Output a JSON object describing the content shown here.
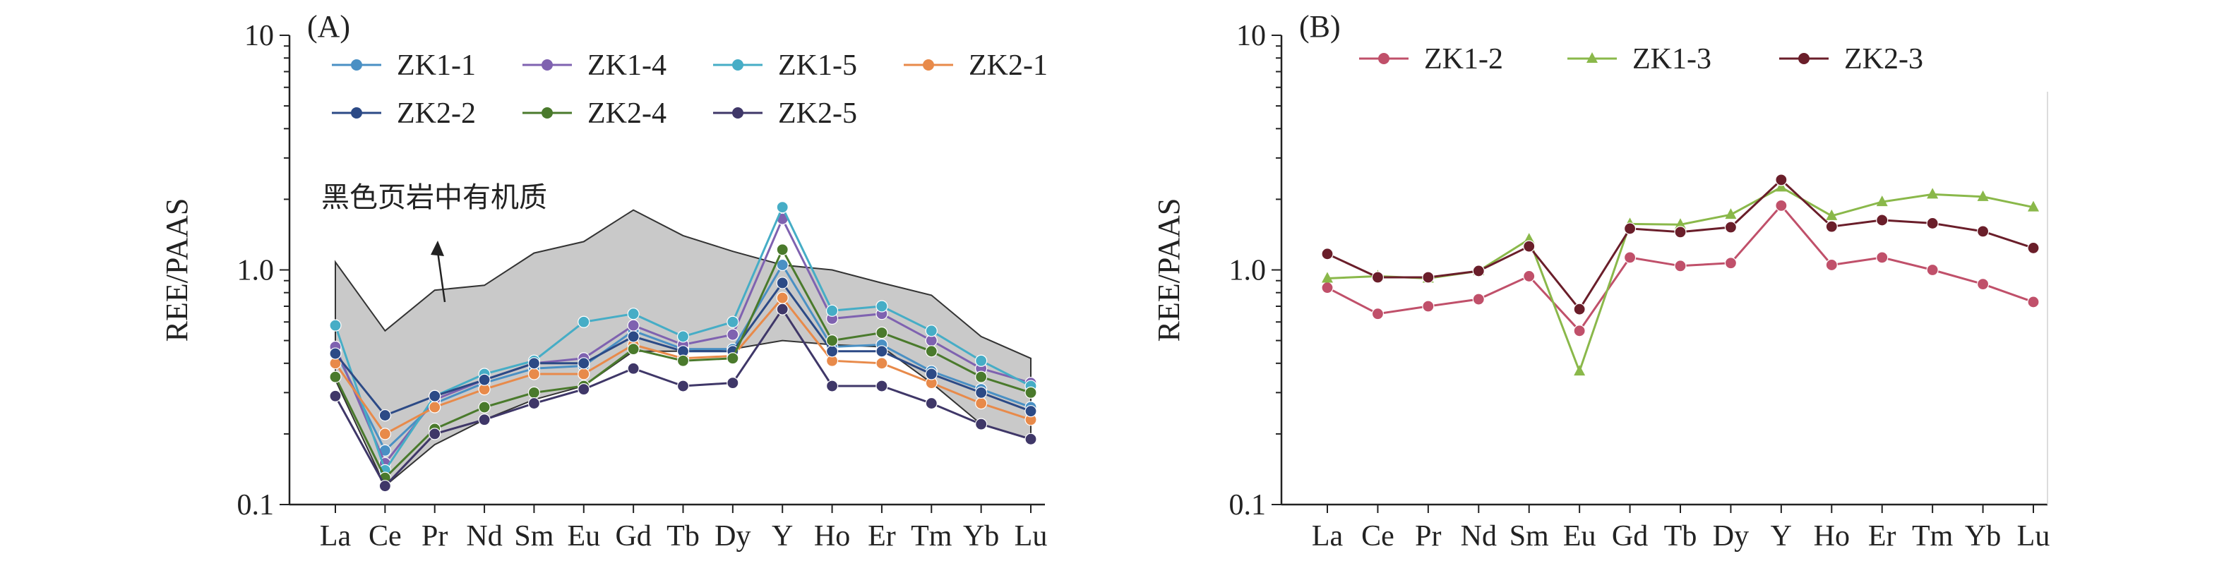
{
  "chart_data": [
    {
      "panel_label": "(A)",
      "type": "line",
      "ylabel": "REE/PAAS",
      "yscale": "log",
      "ylim": [
        0.1,
        10
      ],
      "yticks": [
        "0.1",
        "1.0",
        "10"
      ],
      "categories": [
        "La",
        "Ce",
        "Pr",
        "Nd",
        "Sm",
        "Eu",
        "Gd",
        "Tb",
        "Dy",
        "Y",
        "Ho",
        "Er",
        "Tm",
        "Yb",
        "Lu"
      ],
      "series": [
        {
          "name": "ZK1-1",
          "color": "#4a90c4",
          "marker": "circle",
          "values": [
            0.45,
            0.17,
            0.27,
            0.33,
            0.38,
            0.39,
            0.55,
            0.46,
            0.46,
            1.05,
            0.47,
            0.48,
            0.37,
            0.31,
            0.26
          ]
        },
        {
          "name": "ZK1-4",
          "color": "#7f62b0",
          "marker": "circle",
          "values": [
            0.47,
            0.15,
            0.28,
            0.34,
            0.4,
            0.42,
            0.58,
            0.48,
            0.53,
            1.65,
            0.62,
            0.65,
            0.5,
            0.38,
            0.33
          ]
        },
        {
          "name": "ZK1-5",
          "color": "#46adc6",
          "marker": "circle",
          "values": [
            0.58,
            0.14,
            0.29,
            0.36,
            0.41,
            0.6,
            0.65,
            0.52,
            0.6,
            1.85,
            0.67,
            0.7,
            0.55,
            0.41,
            0.32
          ]
        },
        {
          "name": "ZK2-1",
          "color": "#e88a4a",
          "marker": "circle",
          "values": [
            0.4,
            0.2,
            0.26,
            0.31,
            0.36,
            0.36,
            0.48,
            0.42,
            0.43,
            0.76,
            0.41,
            0.4,
            0.33,
            0.27,
            0.23
          ]
        },
        {
          "name": "ZK2-2",
          "color": "#2c4a86",
          "marker": "circle",
          "values": [
            0.44,
            0.24,
            0.29,
            0.34,
            0.4,
            0.4,
            0.52,
            0.45,
            0.45,
            0.88,
            0.45,
            0.45,
            0.36,
            0.3,
            0.25
          ]
        },
        {
          "name": "ZK2-4",
          "color": "#4a7a2c",
          "marker": "circle",
          "values": [
            0.35,
            0.13,
            0.21,
            0.26,
            0.3,
            0.32,
            0.46,
            0.41,
            0.42,
            1.22,
            0.5,
            0.54,
            0.45,
            0.35,
            0.3
          ]
        },
        {
          "name": "ZK2-5",
          "color": "#3f3768",
          "marker": "circle",
          "values": [
            0.29,
            0.12,
            0.2,
            0.23,
            0.27,
            0.31,
            0.38,
            0.32,
            0.33,
            0.68,
            0.32,
            0.32,
            0.27,
            0.22,
            0.19
          ]
        }
      ],
      "band": {
        "label": "黑色页岩中有机质",
        "upper": [
          1.08,
          0.55,
          0.82,
          0.86,
          1.18,
          1.32,
          1.8,
          1.4,
          1.2,
          1.05,
          1.0,
          0.88,
          0.78,
          0.52,
          0.42
        ],
        "lower": [
          0.34,
          0.12,
          0.18,
          0.23,
          0.28,
          0.32,
          0.45,
          0.45,
          0.46,
          0.5,
          0.48,
          0.47,
          0.33,
          0.22,
          0.19
        ]
      },
      "legend_position": "top"
    },
    {
      "panel_label": "(B)",
      "type": "line",
      "ylabel": "REE/PAAS",
      "yscale": "log",
      "ylim": [
        0.1,
        10
      ],
      "yticks": [
        "0.1",
        "1.0",
        "10"
      ],
      "categories": [
        "La",
        "Ce",
        "Pr",
        "Nd",
        "Sm",
        "Eu",
        "Gd",
        "Tb",
        "Dy",
        "Y",
        "Ho",
        "Er",
        "Tm",
        "Yb",
        "Lu"
      ],
      "series": [
        {
          "name": "ZK1-2",
          "color": "#c0506a",
          "marker": "circle",
          "values": [
            0.84,
            0.65,
            0.7,
            0.75,
            0.94,
            0.55,
            1.13,
            1.04,
            1.07,
            1.88,
            1.05,
            1.13,
            1.0,
            0.87,
            0.73
          ]
        },
        {
          "name": "ZK1-3",
          "color": "#8ab84a",
          "marker": "triangle",
          "values": [
            0.92,
            0.94,
            0.92,
            0.99,
            1.35,
            0.37,
            1.57,
            1.56,
            1.72,
            2.25,
            1.7,
            1.95,
            2.1,
            2.05,
            1.85
          ]
        },
        {
          "name": "ZK2-3",
          "color": "#6a1e2a",
          "marker": "circle",
          "values": [
            1.17,
            0.93,
            0.93,
            0.99,
            1.26,
            0.68,
            1.5,
            1.45,
            1.52,
            2.42,
            1.53,
            1.63,
            1.58,
            1.46,
            1.24
          ]
        }
      ],
      "legend_position": "top"
    }
  ]
}
